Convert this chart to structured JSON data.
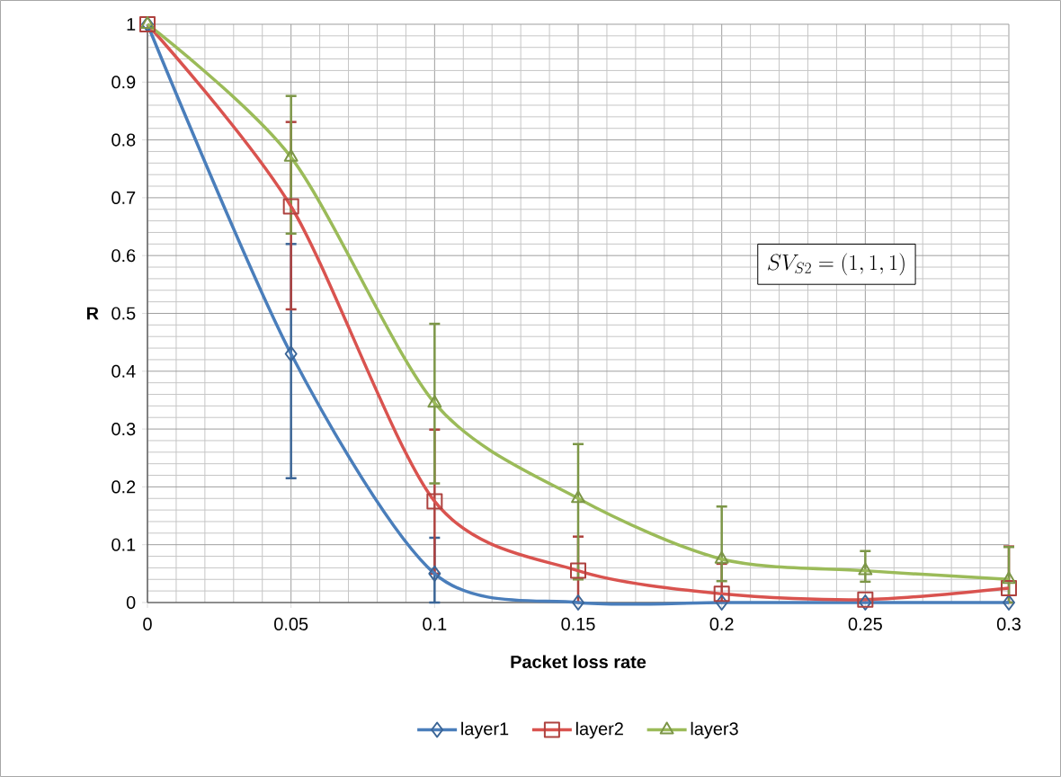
{
  "chart_data": {
    "type": "line",
    "xlabel": "Packet loss rate",
    "ylabel": "R",
    "x": [
      0,
      0.05,
      0.1,
      0.15,
      0.2,
      0.25,
      0.3
    ],
    "series": [
      {
        "name": "layer1",
        "color": "#4a7ebb",
        "marker": "diamond",
        "values": [
          1,
          0.43,
          0.05,
          0,
          0,
          0,
          0
        ],
        "errors": [
          null,
          [
            0.215,
            0.62
          ],
          [
            0,
            0.112
          ],
          null,
          null,
          null,
          null
        ]
      },
      {
        "name": "layer2",
        "color": "#d9534f",
        "marker": "square",
        "values": [
          1,
          0.685,
          0.175,
          0.055,
          0.015,
          0.005,
          0.025
        ],
        "errors": [
          null,
          [
            0.507,
            0.831
          ],
          [
            0.05,
            0.299
          ],
          [
            0,
            0.114
          ],
          [
            0,
            0.067
          ],
          null,
          [
            0,
            0.097
          ]
        ]
      },
      {
        "name": "layer3",
        "color": "#9bbb59",
        "marker": "triangle",
        "values": [
          1,
          0.77,
          0.345,
          0.18,
          0.075,
          0.055,
          0.04
        ],
        "errors": [
          null,
          [
            0.638,
            0.876
          ],
          [
            0.206,
            0.482
          ],
          [
            0.04,
            0.274
          ],
          [
            0.037,
            0.166
          ],
          [
            0.036,
            0.089
          ],
          [
            0,
            0.096
          ]
        ]
      }
    ],
    "xlim": [
      0,
      0.3
    ],
    "xticks": [
      0,
      0.05,
      0.1,
      0.15,
      0.2,
      0.25,
      0.3
    ],
    "ylim": [
      0,
      1
    ],
    "yticks": [
      0,
      0.1,
      0.2,
      0.3,
      0.4,
      0.5,
      0.6,
      0.7,
      0.8,
      0.9,
      1
    ],
    "grid": true,
    "legend": "bottom",
    "annotations": [
      "SV_{S2}=(1,1,1)"
    ]
  }
}
